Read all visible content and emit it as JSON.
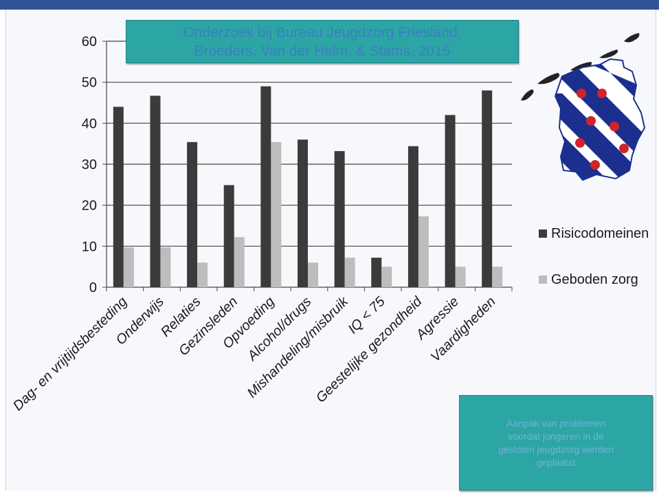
{
  "title": {
    "line1": "Onderzoek bij  Bureau Jeugdzorg Friesland,",
    "line2": "Broeders, Van der Helm, & Stams, 2015"
  },
  "note": {
    "lines": [
      "Aanpak van problemen",
      "voordat jongeren in de",
      "gesloten jeugdzorg werden",
      "geplaatst"
    ]
  },
  "colors": {
    "series1": "#3b3b3b",
    "series2": "#bdbdbd",
    "header": "#2f5495",
    "box": "#2ca6a4"
  },
  "map_icon": "friesland-flag-map-icon",
  "chart_data": {
    "type": "bar",
    "categories": [
      "Dag- en vrijtijdsbesteding",
      "Onderwijs",
      "Relaties",
      "Gezinsleden",
      "Opvoeding",
      "Alcohol/drugs",
      "Mishandeling/misbruik",
      "IQ < 75",
      "Geestelijke gezondheid",
      "Agressie",
      "Vaardigheden"
    ],
    "series": [
      {
        "name": "Risicodomeinen",
        "values": [
          44,
          46.7,
          35.4,
          24.9,
          49,
          36,
          33.2,
          7.2,
          34.4,
          42,
          48
        ]
      },
      {
        "name": "Geboden zorg",
        "values": [
          9.7,
          9.7,
          6,
          12.2,
          35.4,
          6,
          7.2,
          5,
          17.3,
          5,
          5
        ]
      }
    ],
    "title": "",
    "xlabel": "",
    "ylabel": "",
    "ylim": [
      0,
      60
    ],
    "yticks": [
      0,
      10,
      20,
      30,
      40,
      50,
      60
    ],
    "grid": true,
    "legend": "right"
  }
}
